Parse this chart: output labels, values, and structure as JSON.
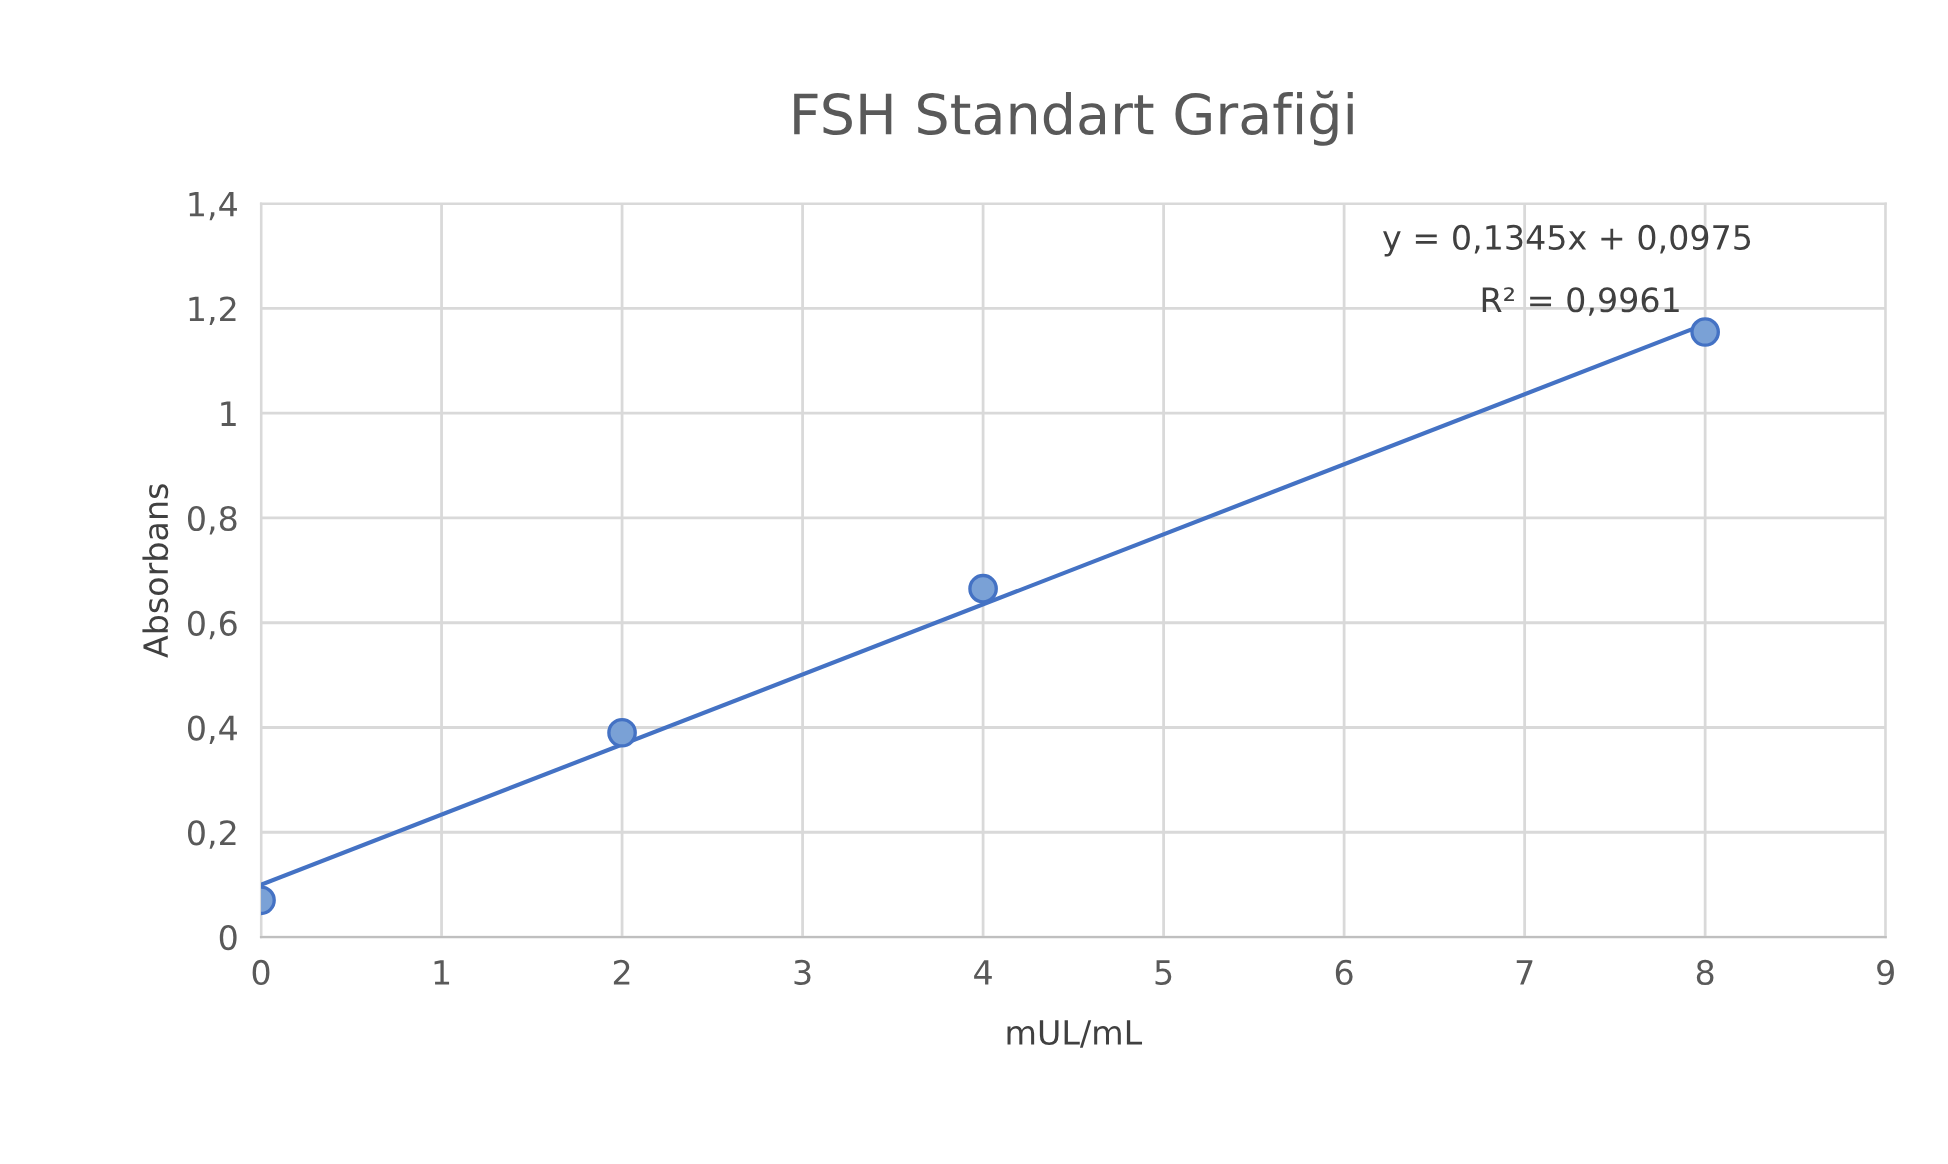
{
  "chart_data": {
    "type": "scatter",
    "title": "FSH Standart Grafiği",
    "xlabel": "mUL/mL",
    "ylabel": "Absorbans",
    "series": [
      {
        "color": "#7aa1d6",
        "x": [
          0,
          2,
          4,
          8
        ],
        "values": [
          0.07,
          0.39,
          0.665,
          1.155
        ],
        "marker": "circle"
      },
      {
        "type": "line",
        "color": "#4472c4",
        "x": [
          0,
          8
        ],
        "values": [
          0.1,
          1.17
        ],
        "marker": "none"
      }
    ],
    "annotations": [
      "y = 0,1345x + 0,0975",
      "R² = 0,9961"
    ],
    "xlim": [
      0,
      9
    ],
    "xticks": [
      0,
      1,
      2,
      3,
      4,
      5,
      6,
      7,
      8,
      9
    ],
    "ylim": [
      0,
      1.4
    ],
    "yticks": [
      0,
      {
        "value": 0.2,
        "label": "0,2"
      },
      {
        "value": 0.4,
        "label": "0,4"
      },
      {
        "value": 0.6,
        "label": "0,6"
      },
      {
        "value": 0.8,
        "label": "0,8"
      },
      1,
      {
        "value": 1.2,
        "label": "1,2"
      },
      {
        "value": 1.4,
        "label": "1,4"
      }
    ],
    "grid": true,
    "legend": false
  }
}
